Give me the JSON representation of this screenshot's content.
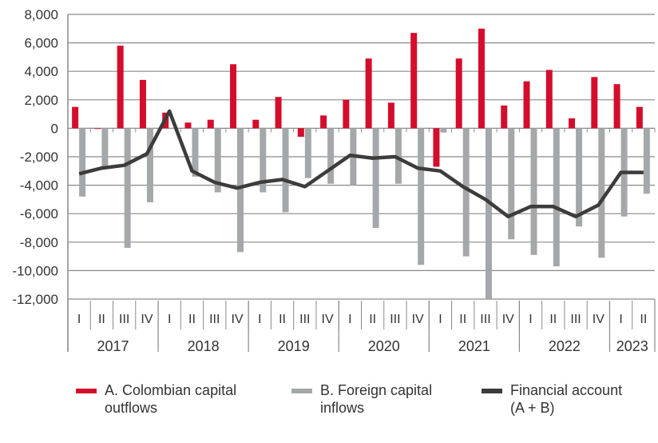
{
  "chart_data": {
    "type": "bar+line",
    "ylim": [
      -12000,
      8000
    ],
    "yticks": [
      8000,
      6000,
      4000,
      2000,
      0,
      -2000,
      -4000,
      -6000,
      -8000,
      -10000,
      -12000
    ],
    "ytick_labels": [
      "8,000",
      "6,000",
      "4,000",
      "2,000",
      "0",
      "-2,000",
      "-4,000",
      "-6,000",
      "-8,000",
      "-10,000",
      "-12,000"
    ],
    "grid": true,
    "legend_position": "bottom",
    "quarters": [
      "I",
      "II",
      "III",
      "IV",
      "I",
      "II",
      "III",
      "IV",
      "I",
      "II",
      "III",
      "IV",
      "I",
      "II",
      "III",
      "IV",
      "I",
      "II",
      "III",
      "IV",
      "I",
      "II",
      "III",
      "IV",
      "I",
      "II"
    ],
    "years": [
      {
        "label": "2017",
        "quarters": 4
      },
      {
        "label": "2018",
        "quarters": 4
      },
      {
        "label": "2019",
        "quarters": 4
      },
      {
        "label": "2020",
        "quarters": 4
      },
      {
        "label": "2021",
        "quarters": 4
      },
      {
        "label": "2022",
        "quarters": 4
      },
      {
        "label": "2023",
        "quarters": 2
      }
    ],
    "series": [
      {
        "name": "A. Colombian capital\noutflows",
        "kind": "bar",
        "color": "#d50d2c",
        "values": [
          1500,
          -50,
          5800,
          3400,
          1100,
          400,
          600,
          4500,
          600,
          2200,
          -600,
          900,
          2000,
          4900,
          1800,
          6700,
          -2700,
          4900,
          7000,
          1600,
          3300,
          4100,
          700,
          3600,
          3100,
          1500
        ]
      },
      {
        "name": "B. Foreign capital\ninflows",
        "kind": "bar",
        "color": "#a5a8aa",
        "values": [
          -4800,
          -2800,
          -8400,
          -5200,
          0,
          -3400,
          -4500,
          -8700,
          -4500,
          -5900,
          -3500,
          -3900,
          -4000,
          -7000,
          -3900,
          -9600,
          -300,
          -9000,
          -12000,
          -7800,
          -8900,
          -9700,
          -6900,
          -9100,
          -6200,
          -4600
        ]
      },
      {
        "name": "Financial account\n(A + B)",
        "kind": "line",
        "color": "#3c3c3c",
        "values": [
          -3200,
          -2800,
          -2600,
          -1800,
          1200,
          -3000,
          -3800,
          -4200,
          -3800,
          -3600,
          -4100,
          -3000,
          -1900,
          -2100,
          -2000,
          -2800,
          -3000,
          -4100,
          -5000,
          -6200,
          -5500,
          -5500,
          -6200,
          -5400,
          -3100,
          -3100
        ]
      }
    ]
  }
}
